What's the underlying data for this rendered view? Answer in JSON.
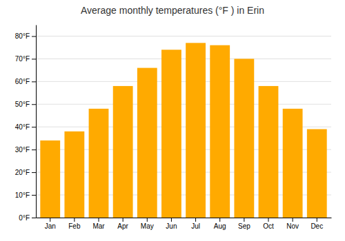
{
  "chart_data": {
    "type": "bar",
    "title": "Average monthly temperatures (°F ) in Erin",
    "categories": [
      "Jan",
      "Feb",
      "Mar",
      "Apr",
      "May",
      "Jun",
      "Jul",
      "Aug",
      "Sep",
      "Oct",
      "Nov",
      "Dec"
    ],
    "values": [
      34,
      38,
      48,
      58,
      66,
      74,
      77,
      76,
      70,
      58,
      48,
      39
    ],
    "color": "#FFAA00",
    "ylim": [
      0,
      85
    ],
    "yticks": [
      {
        "value": 0,
        "label": "0°F"
      },
      {
        "value": 10,
        "label": "10°F"
      },
      {
        "value": 20,
        "label": "20°F"
      },
      {
        "value": 30,
        "label": "30°F"
      },
      {
        "value": 40,
        "label": "40°F"
      },
      {
        "value": 50,
        "label": "50°F"
      },
      {
        "value": 60,
        "label": "60°F"
      },
      {
        "value": 70,
        "label": "70°F"
      },
      {
        "value": 80,
        "label": "80°F"
      }
    ],
    "grid": true
  }
}
